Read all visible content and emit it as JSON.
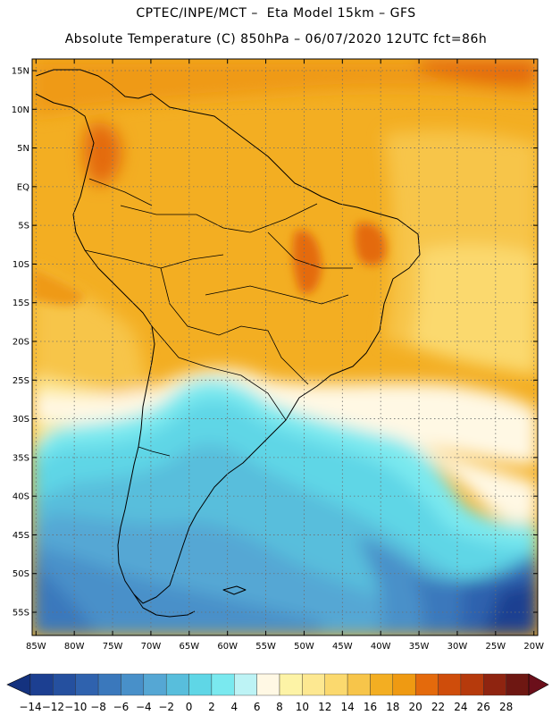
{
  "title_line1": "CPTEC/INPE/MCT –  Eta Model 15km – GFS",
  "title_line2": "Absolute Temperature (C) 850hPa – 06/07/2020 12UTC fct=86h",
  "lat_labels": [
    "15N",
    "10N",
    "5N",
    "EQ",
    "5S",
    "10S",
    "15S",
    "20S",
    "25S",
    "30S",
    "35S",
    "40S",
    "45S",
    "50S",
    "55S"
  ],
  "lat_values": [
    15,
    10,
    5,
    0,
    -5,
    -10,
    -15,
    -20,
    -25,
    -30,
    -35,
    -40,
    -45,
    -50,
    -55
  ],
  "lon_labels": [
    "85W",
    "80W",
    "75W",
    "70W",
    "65W",
    "60W",
    "55W",
    "50W",
    "45W",
    "40W",
    "35W",
    "30W",
    "25W",
    "20W"
  ],
  "lon_values": [
    -85,
    -80,
    -75,
    -70,
    -65,
    -60,
    -55,
    -50,
    -45,
    -40,
    -35,
    -30,
    -25,
    -20
  ],
  "map_extent": {
    "lon_min": -85.5,
    "lon_max": -19.5,
    "lat_min": -58,
    "lat_max": 16.5
  },
  "colorbar": {
    "labels": [
      "-14",
      "-12",
      "-10",
      "-8",
      "-6",
      "-4",
      "-2",
      "0",
      "2",
      "4",
      "6",
      "8",
      "10",
      "12",
      "14",
      "16",
      "18",
      "20",
      "22",
      "24",
      "26",
      "28"
    ],
    "colors": [
      "#1c3f91",
      "#25509f",
      "#2f62ae",
      "#3a78bc",
      "#4890c9",
      "#55a7d4",
      "#58bedc",
      "#5fd6e6",
      "#7ae9ef",
      "#bdf3f5",
      "#fff8e4",
      "#fdf3a6",
      "#fde891",
      "#fbd96e",
      "#f7c54a",
      "#f3ae22",
      "#ef9a12",
      "#e46a0c",
      "#cf4d0b",
      "#b63a0c",
      "#8f2410",
      "#6e1712"
    ],
    "under_color": "#14327f",
    "over_color": "#6b0f1a"
  }
}
